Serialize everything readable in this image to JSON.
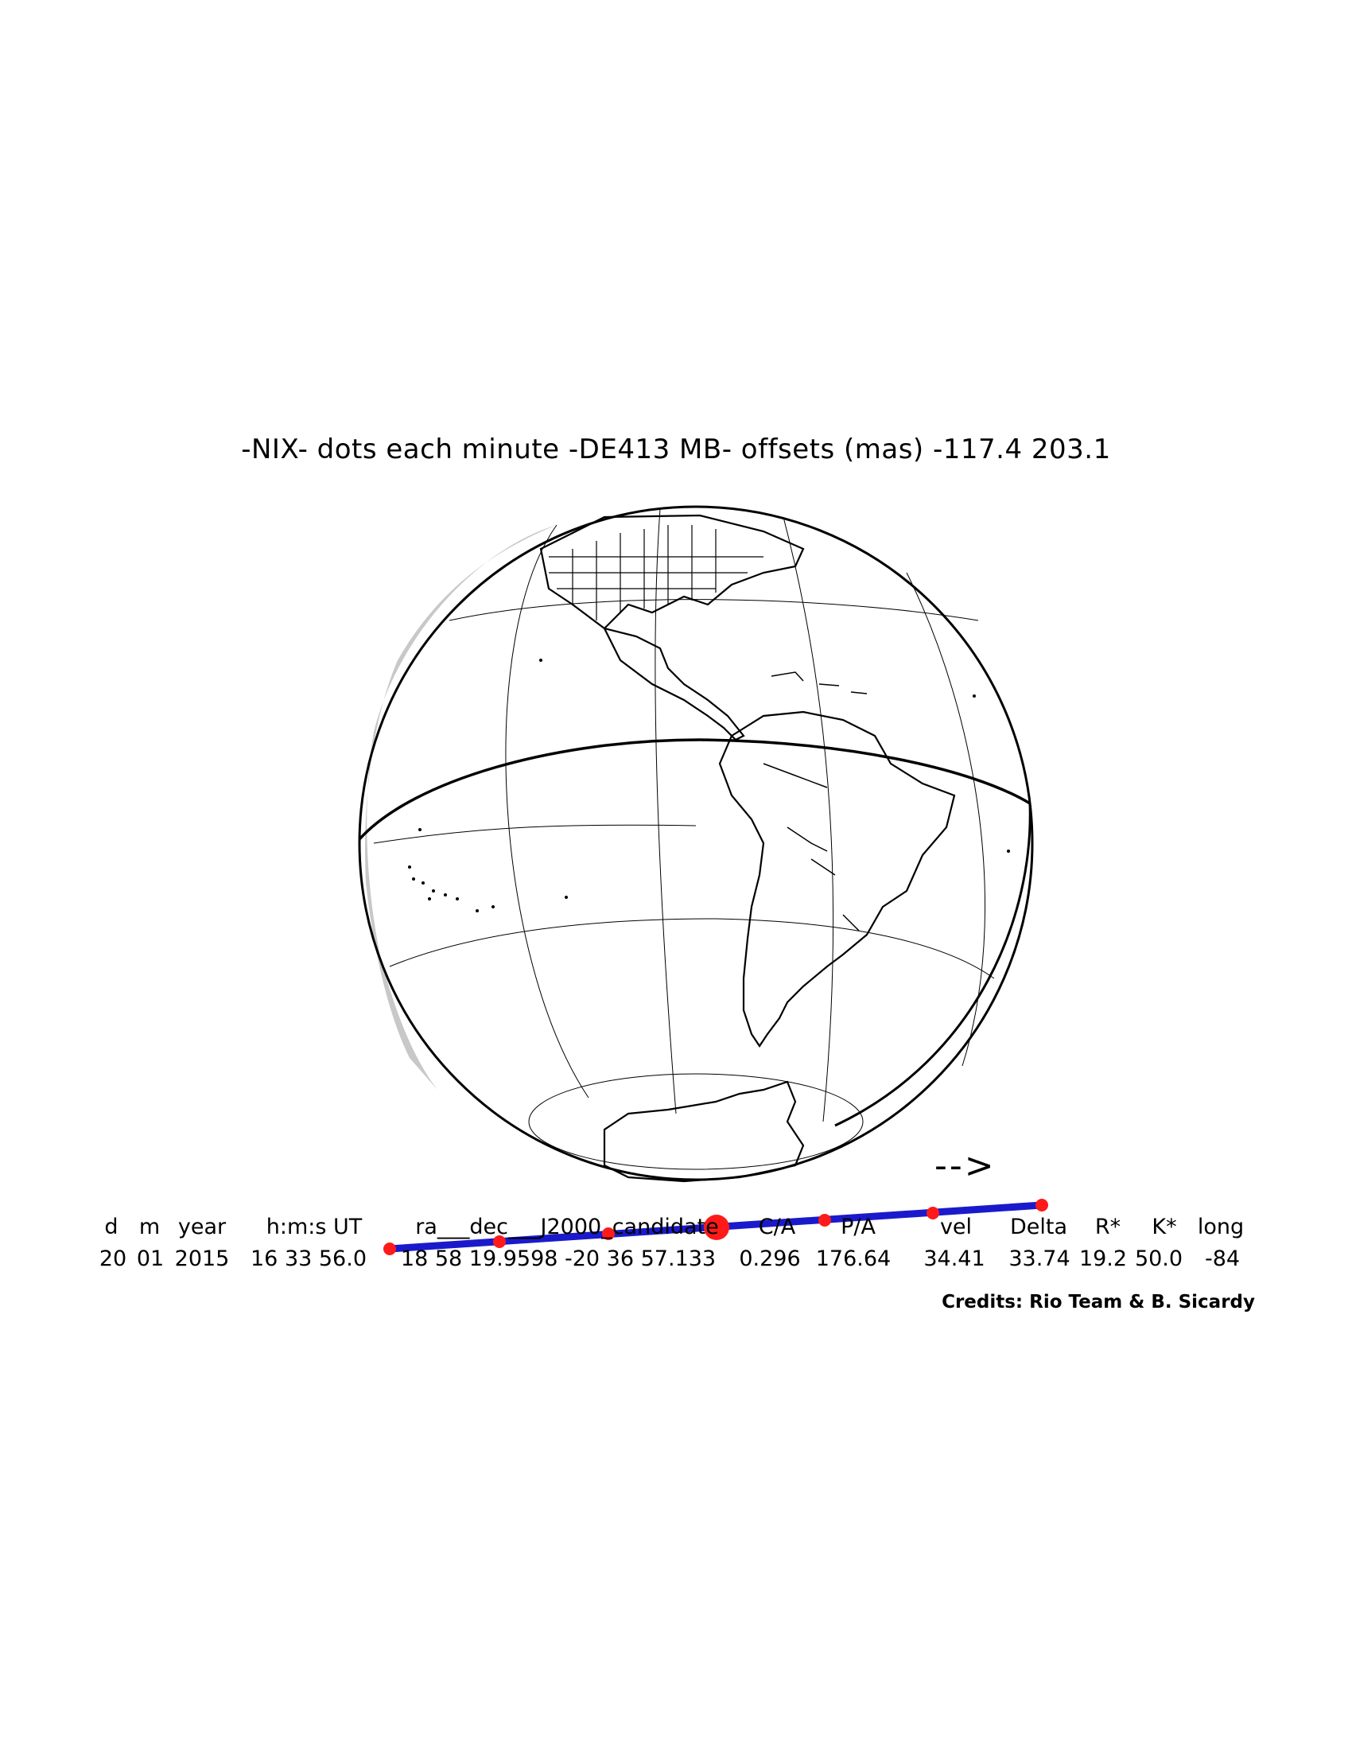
{
  "title": "-NIX- dots each minute -DE413 MB- offsets (mas) -117.4   203.1",
  "direction_arrow": "-->",
  "table": {
    "headers": [
      "d",
      "m",
      "year",
      "h:m:s UT",
      "ra___dec___J2000_candidate",
      "C/A",
      "P/A",
      "vel",
      "Delta",
      "R*",
      "K*",
      "long"
    ],
    "values": [
      "20",
      "01",
      "2015",
      "16 33 56.0",
      "18 58 19.9598 -20 36 57.133",
      "0.296",
      "176.64",
      "34.41",
      "33.74",
      "19.2",
      "50.0",
      "-84"
    ]
  },
  "credits": "Credits: Rio Team & B. Sicardy",
  "colors": {
    "track": "#1a1acc",
    "dots": "#ff1a1a",
    "shadow": "#c8c8c8",
    "ink": "#000000"
  }
}
